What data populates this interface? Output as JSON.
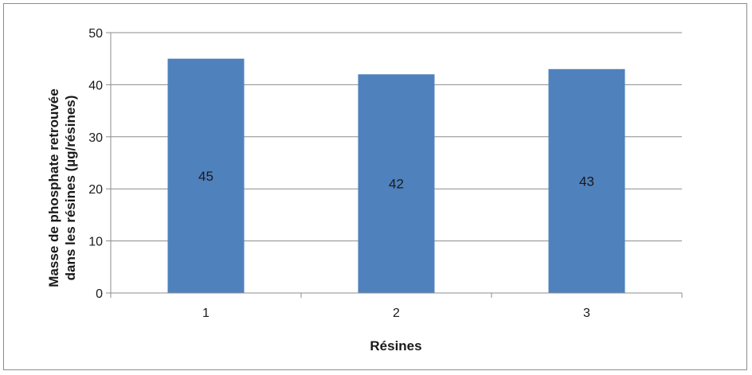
{
  "chart_data": {
    "type": "bar",
    "categories": [
      "1",
      "2",
      "3"
    ],
    "values": [
      45,
      42,
      43
    ],
    "data_labels": [
      "45",
      "42",
      "43"
    ],
    "title": "",
    "xlabel": "Résines",
    "ylabel_line1": "Masse de phosphate retrouvée",
    "ylabel_line2": "dans les résines (µg/résines)",
    "ylim": [
      0,
      50
    ],
    "yticks": [
      "0",
      "10",
      "20",
      "30",
      "40",
      "50"
    ],
    "grid": true,
    "legend": "none",
    "bar_color": "#4F81BD"
  }
}
